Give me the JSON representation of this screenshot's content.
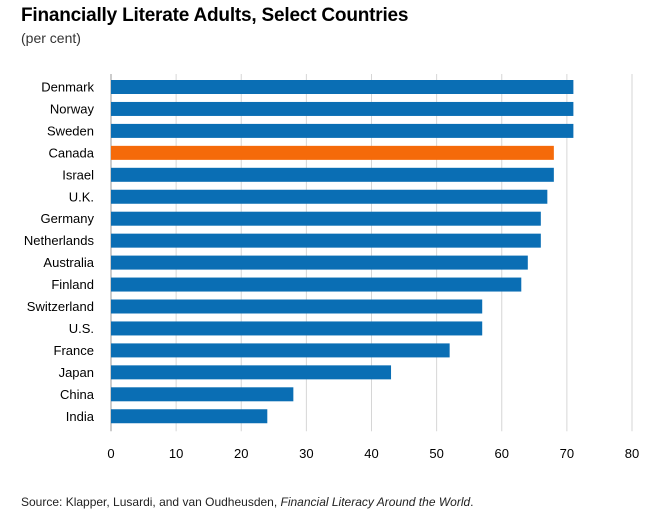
{
  "chart_data": {
    "type": "bar",
    "orientation": "horizontal",
    "title": "Financially Literate Adults, Select Countries",
    "subtitle": "(per cent)",
    "categories": [
      "Denmark",
      "Norway",
      "Sweden",
      "Canada",
      "Israel",
      "U.K.",
      "Germany",
      "Netherlands",
      "Australia",
      "Finland",
      "Switzerland",
      "U.S.",
      "France",
      "Japan",
      "China",
      "India"
    ],
    "values": [
      71,
      71,
      71,
      68,
      68,
      67,
      66,
      66,
      64,
      63,
      57,
      57,
      52,
      43,
      28,
      24
    ],
    "highlight_category": "Canada",
    "xlim": [
      0,
      80
    ],
    "xticks": [
      0,
      10,
      20,
      30,
      40,
      50,
      60,
      70,
      80
    ],
    "grid": true,
    "legend": "none",
    "colors": {
      "bar": "#0a6eb4",
      "highlight": "#f56a0a",
      "grid": "#d6d6d6",
      "axis": "#999999"
    }
  },
  "source": {
    "prefix": "Source: Klapper, Lusardi, and van Oudheusden, ",
    "title": "Financial Literacy Around the World",
    "suffix": "."
  }
}
